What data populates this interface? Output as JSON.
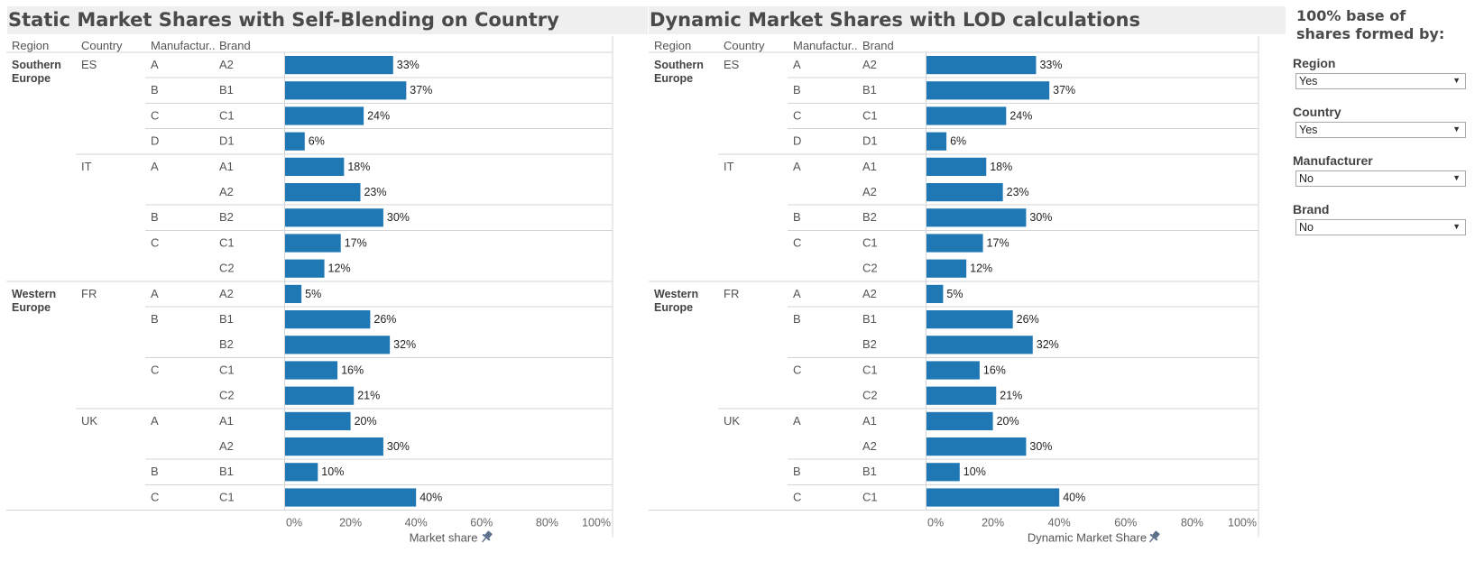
{
  "chart_data": [
    {
      "type": "bar",
      "title": "Static Market Shares with Self-Blending on Country",
      "xlabel": "Market share",
      "xlim": [
        0,
        100
      ],
      "xticks": [
        "0%",
        "20%",
        "40%",
        "60%",
        "80%",
        "100%"
      ],
      "columns": [
        "Region",
        "Country",
        "Manufactur..",
        "Brand"
      ],
      "axis_icon": "pin-icon",
      "bar_color": "#1f77b4",
      "regions": [
        {
          "name": "Southern Europe",
          "lines": [
            "Southern",
            "Europe"
          ]
        },
        {
          "name": "Western Europe",
          "lines": [
            "Western",
            "Europe"
          ]
        }
      ],
      "rows": [
        {
          "region": "Southern Europe",
          "country": "ES",
          "manufacturer": "A",
          "brand": "A2",
          "value": 33,
          "label": "33%"
        },
        {
          "region": "Southern Europe",
          "country": "ES",
          "manufacturer": "B",
          "brand": "B1",
          "value": 37,
          "label": "37%"
        },
        {
          "region": "Southern Europe",
          "country": "ES",
          "manufacturer": "C",
          "brand": "C1",
          "value": 24,
          "label": "24%"
        },
        {
          "region": "Southern Europe",
          "country": "ES",
          "manufacturer": "D",
          "brand": "D1",
          "value": 6,
          "label": "6%"
        },
        {
          "region": "Southern Europe",
          "country": "IT",
          "manufacturer": "A",
          "brand": "A1",
          "value": 18,
          "label": "18%"
        },
        {
          "region": "Southern Europe",
          "country": "IT",
          "manufacturer": "A",
          "brand": "A2",
          "value": 23,
          "label": "23%"
        },
        {
          "region": "Southern Europe",
          "country": "IT",
          "manufacturer": "B",
          "brand": "B2",
          "value": 30,
          "label": "30%"
        },
        {
          "region": "Southern Europe",
          "country": "IT",
          "manufacturer": "C",
          "brand": "C1",
          "value": 17,
          "label": "17%"
        },
        {
          "region": "Southern Europe",
          "country": "IT",
          "manufacturer": "C",
          "brand": "C2",
          "value": 12,
          "label": "12%"
        },
        {
          "region": "Western Europe",
          "country": "FR",
          "manufacturer": "A",
          "brand": "A2",
          "value": 5,
          "label": "5%"
        },
        {
          "region": "Western Europe",
          "country": "FR",
          "manufacturer": "B",
          "brand": "B1",
          "value": 26,
          "label": "26%"
        },
        {
          "region": "Western Europe",
          "country": "FR",
          "manufacturer": "B",
          "brand": "B2",
          "value": 32,
          "label": "32%"
        },
        {
          "region": "Western Europe",
          "country": "FR",
          "manufacturer": "C",
          "brand": "C1",
          "value": 16,
          "label": "16%"
        },
        {
          "region": "Western Europe",
          "country": "FR",
          "manufacturer": "C",
          "brand": "C2",
          "value": 21,
          "label": "21%"
        },
        {
          "region": "Western Europe",
          "country": "UK",
          "manufacturer": "A",
          "brand": "A1",
          "value": 20,
          "label": "20%"
        },
        {
          "region": "Western Europe",
          "country": "UK",
          "manufacturer": "A",
          "brand": "A2",
          "value": 30,
          "label": "30%"
        },
        {
          "region": "Western Europe",
          "country": "UK",
          "manufacturer": "B",
          "brand": "B1",
          "value": 10,
          "label": "10%"
        },
        {
          "region": "Western Europe",
          "country": "UK",
          "manufacturer": "C",
          "brand": "C1",
          "value": 40,
          "label": "40%"
        }
      ]
    },
    {
      "type": "bar",
      "title": "Dynamic Market Shares with LOD calculations",
      "xlabel": "Dynamic Market Share",
      "xlim": [
        0,
        100
      ],
      "xticks": [
        "0%",
        "20%",
        "40%",
        "60%",
        "80%",
        "100%"
      ],
      "columns": [
        "Region",
        "Country",
        "Manufactur..",
        "Brand"
      ],
      "axis_icon": "pin-icon",
      "bar_color": "#1f77b4",
      "regions": [
        {
          "name": "Southern Europe",
          "lines": [
            "Southern",
            "Europe"
          ]
        },
        {
          "name": "Western Europe",
          "lines": [
            "Western",
            "Europe"
          ]
        }
      ],
      "rows": [
        {
          "region": "Southern Europe",
          "country": "ES",
          "manufacturer": "A",
          "brand": "A2",
          "value": 33,
          "label": "33%"
        },
        {
          "region": "Southern Europe",
          "country": "ES",
          "manufacturer": "B",
          "brand": "B1",
          "value": 37,
          "label": "37%"
        },
        {
          "region": "Southern Europe",
          "country": "ES",
          "manufacturer": "C",
          "brand": "C1",
          "value": 24,
          "label": "24%"
        },
        {
          "region": "Southern Europe",
          "country": "ES",
          "manufacturer": "D",
          "brand": "D1",
          "value": 6,
          "label": "6%"
        },
        {
          "region": "Southern Europe",
          "country": "IT",
          "manufacturer": "A",
          "brand": "A1",
          "value": 18,
          "label": "18%"
        },
        {
          "region": "Southern Europe",
          "country": "IT",
          "manufacturer": "A",
          "brand": "A2",
          "value": 23,
          "label": "23%"
        },
        {
          "region": "Southern Europe",
          "country": "IT",
          "manufacturer": "B",
          "brand": "B2",
          "value": 30,
          "label": "30%"
        },
        {
          "region": "Southern Europe",
          "country": "IT",
          "manufacturer": "C",
          "brand": "C1",
          "value": 17,
          "label": "17%"
        },
        {
          "region": "Southern Europe",
          "country": "IT",
          "manufacturer": "C",
          "brand": "C2",
          "value": 12,
          "label": "12%"
        },
        {
          "region": "Western Europe",
          "country": "FR",
          "manufacturer": "A",
          "brand": "A2",
          "value": 5,
          "label": "5%"
        },
        {
          "region": "Western Europe",
          "country": "FR",
          "manufacturer": "B",
          "brand": "B1",
          "value": 26,
          "label": "26%"
        },
        {
          "region": "Western Europe",
          "country": "FR",
          "manufacturer": "B",
          "brand": "B2",
          "value": 32,
          "label": "32%"
        },
        {
          "region": "Western Europe",
          "country": "FR",
          "manufacturer": "C",
          "brand": "C1",
          "value": 16,
          "label": "16%"
        },
        {
          "region": "Western Europe",
          "country": "FR",
          "manufacturer": "C",
          "brand": "C2",
          "value": 21,
          "label": "21%"
        },
        {
          "region": "Western Europe",
          "country": "UK",
          "manufacturer": "A",
          "brand": "A1",
          "value": 20,
          "label": "20%"
        },
        {
          "region": "Western Europe",
          "country": "UK",
          "manufacturer": "A",
          "brand": "A2",
          "value": 30,
          "label": "30%"
        },
        {
          "region": "Western Europe",
          "country": "UK",
          "manufacturer": "B",
          "brand": "B1",
          "value": 10,
          "label": "10%"
        },
        {
          "region": "Western Europe",
          "country": "UK",
          "manufacturer": "C",
          "brand": "C1",
          "value": 40,
          "label": "40%"
        }
      ]
    }
  ],
  "sidebar": {
    "title": "100% base of shares formed by:",
    "filters": [
      {
        "label": "Region",
        "value": "Yes"
      },
      {
        "label": "Country",
        "value": "Yes"
      },
      {
        "label": "Manufacturer",
        "value": "No"
      },
      {
        "label": "Brand",
        "value": "No"
      }
    ],
    "dropdown_icon": "caret-down-icon"
  }
}
